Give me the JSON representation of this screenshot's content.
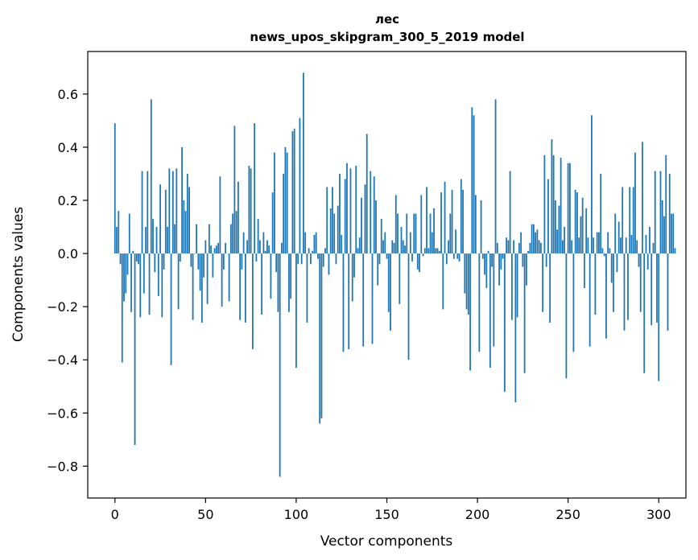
{
  "chart_data": {
    "type": "bar",
    "title": "лес",
    "subtitle": "news_upos_skipgram_300_5_2019 model",
    "xlabel": "Vector components",
    "ylabel": "Components values",
    "xlim": [
      -15,
      315
    ],
    "ylim": [
      -0.92,
      0.76
    ],
    "xticks": [
      0,
      50,
      100,
      150,
      200,
      250,
      300
    ],
    "yticks": [
      -0.8,
      -0.6,
      -0.4,
      -0.2,
      0.0,
      0.2,
      0.4,
      0.6
    ],
    "ytick_labels": [
      "−0.8",
      "−0.6",
      "−0.4",
      "−0.2",
      "0.0",
      "0.2",
      "0.4",
      "0.6"
    ],
    "grid": false,
    "color": "#1f77b4",
    "values": [
      0.49,
      0.1,
      0.16,
      -0.04,
      -0.41,
      -0.18,
      -0.15,
      -0.08,
      0.15,
      -0.22,
      0.01,
      -0.72,
      -0.03,
      -0.04,
      -0.24,
      0.31,
      -0.15,
      0.1,
      0.31,
      -0.23,
      0.58,
      0.13,
      -0.07,
      0.1,
      -0.16,
      0.26,
      -0.24,
      -0.06,
      0.24,
      0.1,
      0.32,
      -0.42,
      0.31,
      0.11,
      0.32,
      -0.21,
      -0.03,
      0.4,
      0.2,
      0.16,
      0.3,
      0.25,
      -0.05,
      -0.25,
      0.0,
      0.11,
      -0.06,
      -0.14,
      -0.26,
      -0.09,
      0.05,
      -0.19,
      0.11,
      0.03,
      -0.09,
      0.02,
      0.03,
      0.04,
      0.29,
      -0.2,
      -0.06,
      0.04,
      0.0,
      -0.18,
      0.11,
      0.15,
      0.48,
      0.16,
      0.27,
      -0.25,
      -0.06,
      0.08,
      -0.26,
      0.05,
      0.33,
      0.32,
      -0.36,
      0.49,
      -0.03,
      0.13,
      0.05,
      -0.23,
      0.08,
      0.01,
      0.05,
      0.03,
      -0.17,
      0.23,
      0.38,
      -0.07,
      -0.22,
      -0.84,
      0.04,
      0.3,
      0.4,
      0.38,
      -0.22,
      -0.17,
      0.46,
      0.47,
      -0.43,
      -0.04,
      0.51,
      -0.04,
      0.68,
      0.08,
      -0.26,
      0.02,
      -0.04,
      0.01,
      0.07,
      0.08,
      -0.02,
      -0.64,
      -0.62,
      -0.05,
      0.02,
      0.25,
      -0.08,
      0.17,
      0.25,
      0.15,
      -0.04,
      0.18,
      0.3,
      0.07,
      -0.37,
      0.28,
      0.34,
      -0.36,
      0.32,
      -0.18,
      -0.09,
      0.33,
      0.02,
      0.06,
      0.21,
      -0.35,
      0.26,
      0.45,
      0.0,
      0.31,
      -0.34,
      0.29,
      0.2,
      -0.12,
      -0.04,
      0.13,
      0.05,
      0.08,
      -0.02,
      -0.22,
      -0.29,
      0.05,
      0.04,
      0.22,
      0.15,
      -0.19,
      0.1,
      0.05,
      0.03,
      0.15,
      -0.4,
      0.08,
      -0.03,
      0.15,
      0.15,
      -0.06,
      -0.07,
      0.22,
      -0.01,
      0.02,
      0.25,
      0.02,
      0.15,
      0.08,
      0.17,
      0.02,
      0.02,
      0.01,
      0.23,
      -0.21,
      0.27,
      -0.04,
      0.05,
      0.15,
      0.24,
      -0.02,
      0.09,
      -0.02,
      -0.03,
      0.28,
      0.24,
      -0.15,
      -0.21,
      -0.23,
      -0.44,
      0.55,
      0.52,
      0.22,
      0.0,
      -0.37,
      0.2,
      -0.02,
      -0.08,
      -0.13,
      0.01,
      -0.43,
      -0.05,
      -0.35,
      0.58,
      0.04,
      -0.12,
      -0.06,
      -0.02,
      -0.52,
      0.06,
      0.05,
      0.31,
      -0.25,
      0.05,
      -0.56,
      -0.24,
      0.04,
      0.08,
      -0.05,
      -0.45,
      -0.12,
      0.01,
      0.04,
      0.11,
      0.11,
      0.08,
      0.09,
      0.05,
      0.04,
      -0.22,
      0.37,
      -0.05,
      0.28,
      -0.26,
      0.43,
      0.37,
      0.2,
      0.09,
      0.18,
      0.36,
      0.05,
      0.1,
      -0.47,
      0.34,
      0.34,
      0.05,
      -0.37,
      0.24,
      0.23,
      0.06,
      0.14,
      0.21,
      -0.13,
      0.17,
      0.06,
      -0.35,
      0.52,
      0.06,
      -0.23,
      0.08,
      0.08,
      0.3,
      0.02,
      -0.01,
      -0.32,
      0.08,
      0.02,
      -0.11,
      -0.22,
      0.15,
      -0.07,
      0.12,
      0.06,
      0.25,
      -0.29,
      0.06,
      -0.25,
      0.25,
      0.07,
      0.25,
      0.38,
      0.05,
      -0.05,
      -0.22,
      0.42,
      -0.45,
      0.07,
      -0.06,
      0.1,
      -0.27,
      0.04,
      0.31,
      -0.26,
      -0.48,
      0.31,
      0.2,
      0.14,
      0.37,
      -0.29,
      0.3,
      0.15,
      0.15,
      0.02
    ]
  }
}
